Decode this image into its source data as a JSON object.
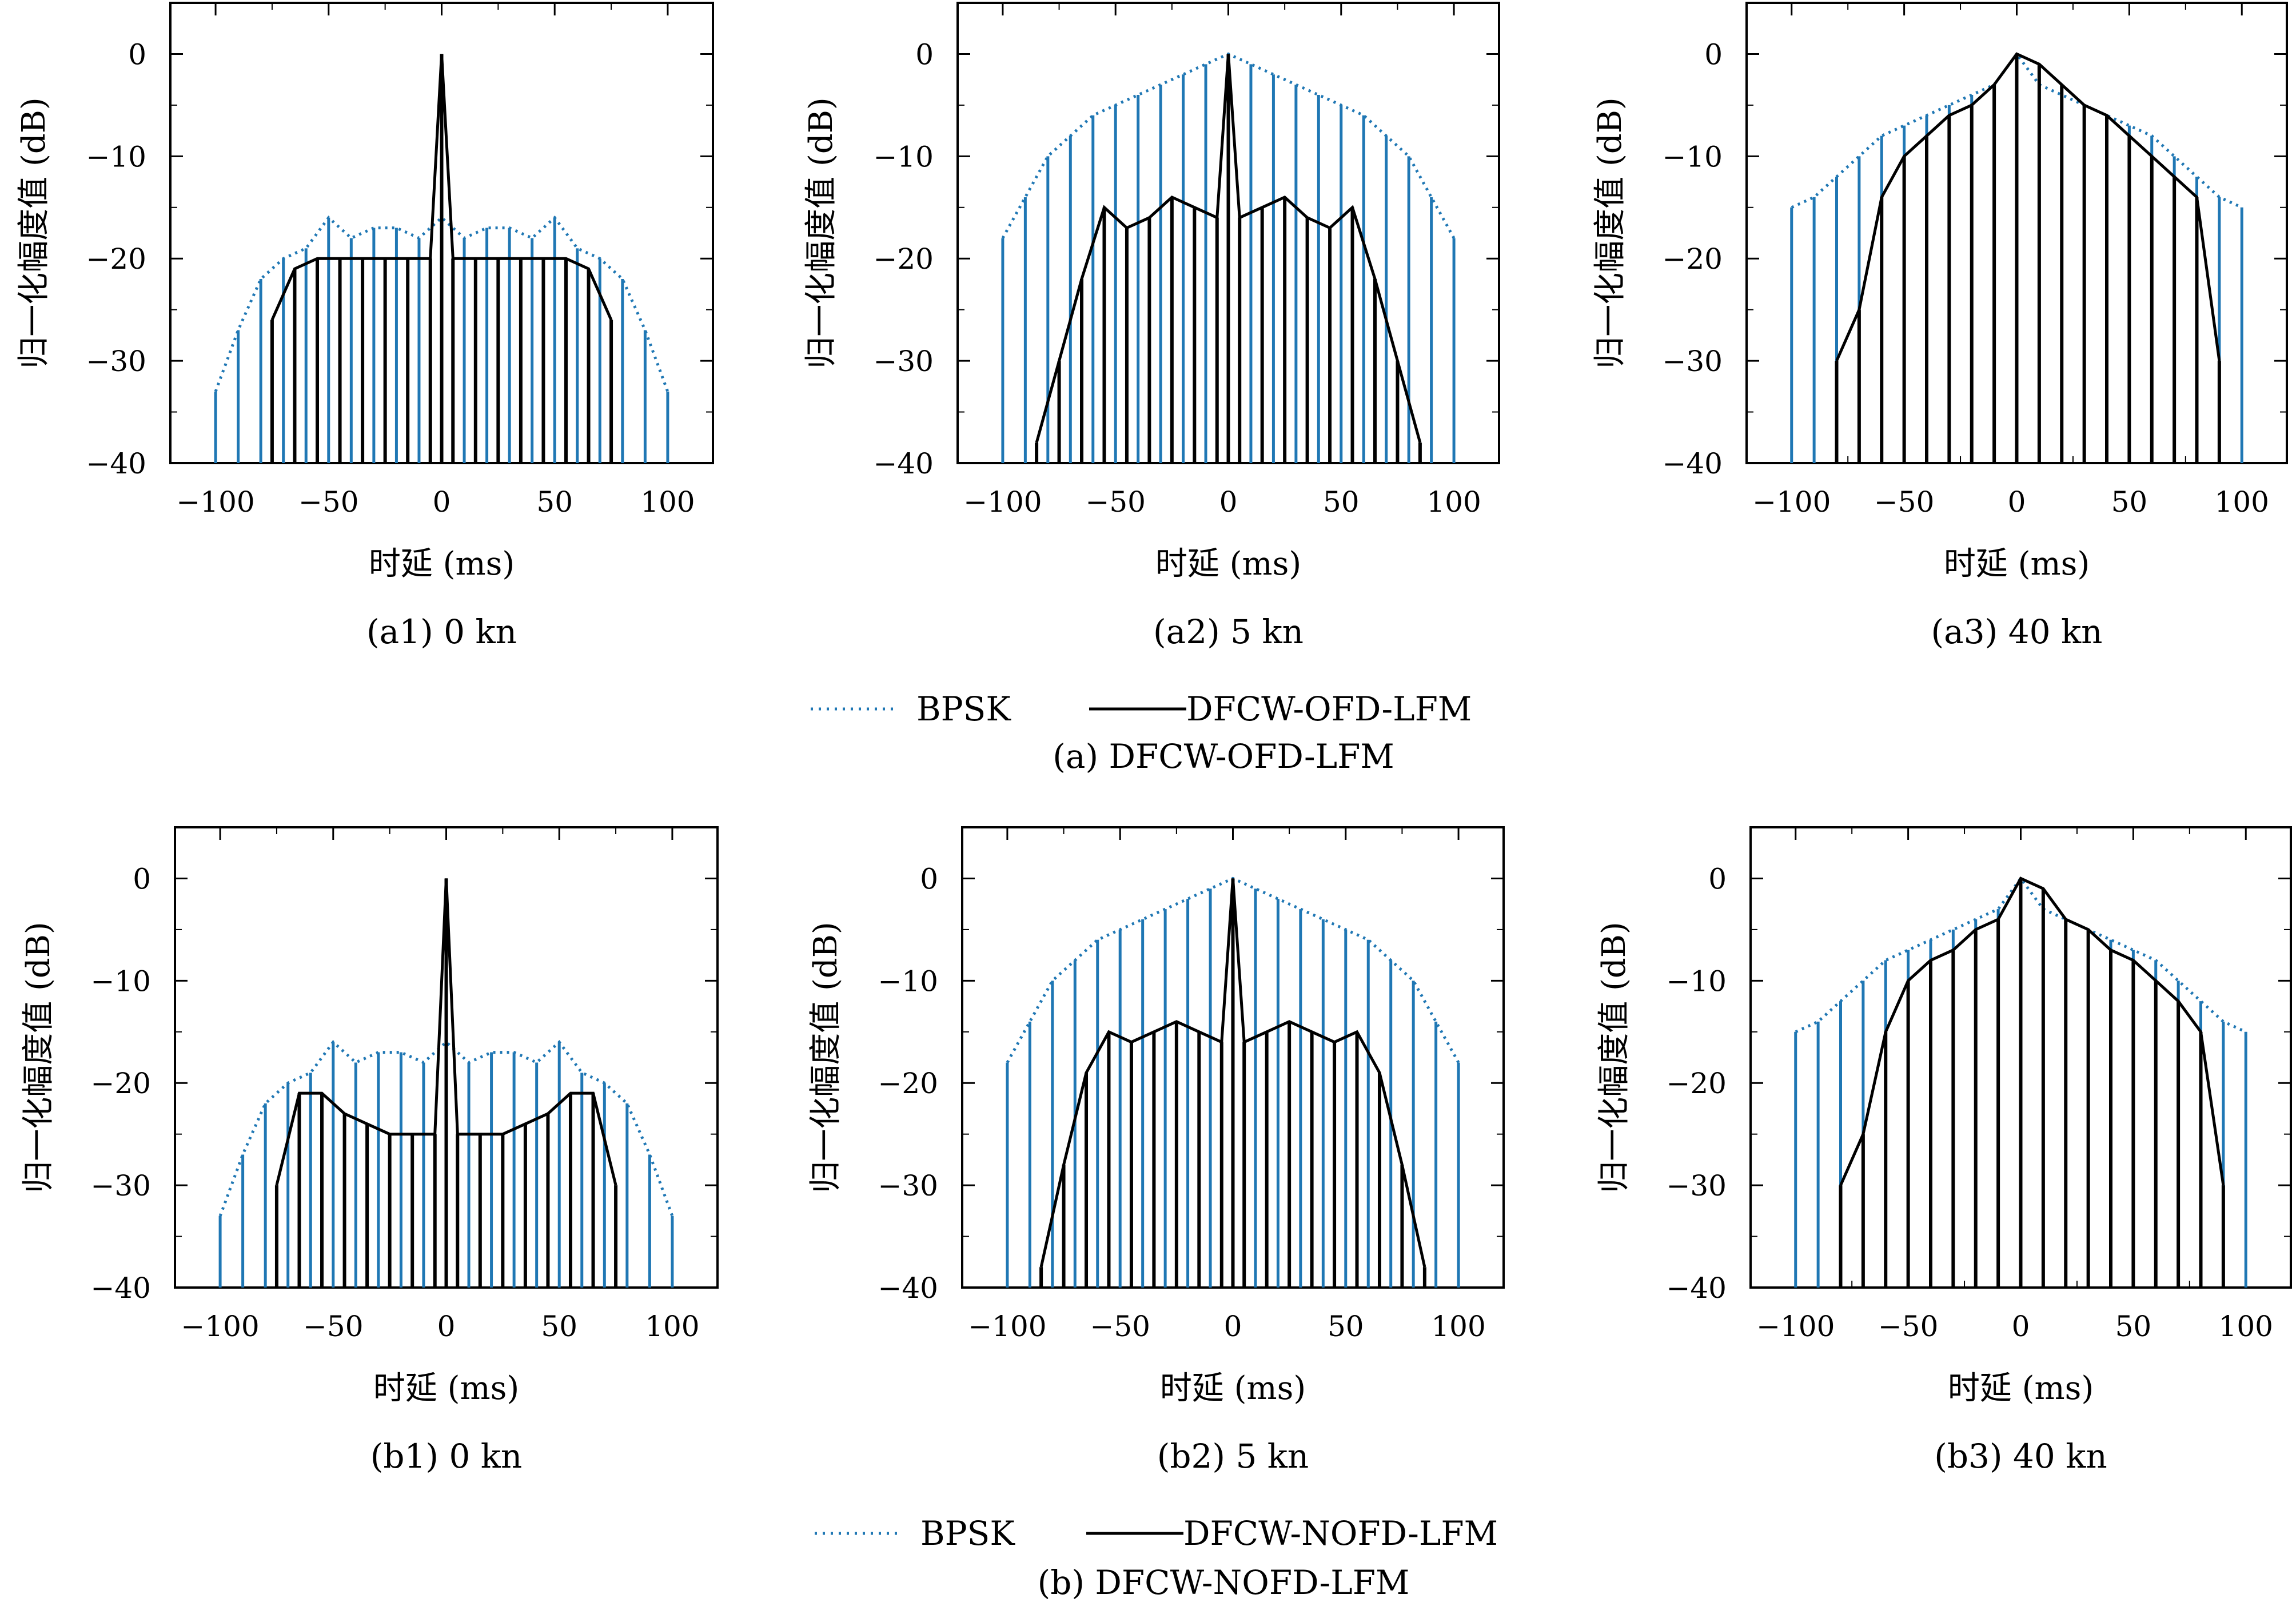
{
  "colors": {
    "bpsk": "#1f77b4",
    "dfcw": "#000000",
    "axes": "#000000"
  },
  "groups": [
    {
      "caption": "(a) DFCW-OFD-LFM",
      "legend": [
        {
          "label": "BPSK",
          "style": "dotted",
          "color": "#1f77b4"
        },
        {
          "label": "DFCW-OFD-LFM",
          "style": "solid",
          "color": "#000000"
        }
      ]
    },
    {
      "caption": "(b) DFCW-NOFD-LFM",
      "legend": [
        {
          "label": "BPSK",
          "style": "dotted",
          "color": "#1f77b4"
        },
        {
          "label": "DFCW-NOFD-LFM",
          "style": "solid",
          "color": "#000000"
        }
      ]
    }
  ],
  "chart_data": [
    {
      "type": "line",
      "caption": "(a1) 0 kn",
      "xlabel": "时延 (ms)",
      "ylabel": "归一化幅度值 (dB)",
      "xlim": [
        -120,
        120
      ],
      "ylim": [
        -40,
        5
      ],
      "xticks": [
        -100,
        -50,
        0,
        50,
        100
      ],
      "yticks": [
        0,
        -10,
        -20,
        -30,
        -40
      ],
      "series": [
        {
          "name": "BPSK",
          "x": [
            -100,
            -90,
            -80,
            -70,
            -60,
            -50,
            -40,
            -30,
            -20,
            -10,
            0,
            10,
            20,
            30,
            40,
            50,
            60,
            70,
            80,
            90,
            100
          ],
          "y": [
            -33,
            -27,
            -22,
            -20,
            -19,
            -16,
            -18,
            -17,
            -17,
            -18,
            -16,
            -18,
            -17,
            -17,
            -18,
            -16,
            -19,
            -20,
            -22,
            -27,
            -33
          ]
        },
        {
          "name": "DFCW-OFD-LFM",
          "x": [
            -75,
            -65,
            -55,
            -45,
            -35,
            -25,
            -15,
            -5,
            0,
            5,
            15,
            25,
            35,
            45,
            55,
            65,
            75
          ],
          "y": [
            -26,
            -21,
            -20,
            -20,
            -20,
            -20,
            -20,
            -20,
            0,
            -20,
            -20,
            -20,
            -20,
            -20,
            -20,
            -21,
            -26
          ]
        }
      ]
    },
    {
      "type": "line",
      "caption": "(a2) 5 kn",
      "xlabel": "时延 (ms)",
      "ylabel": "归一化幅度值 (dB)",
      "xlim": [
        -120,
        120
      ],
      "ylim": [
        -40,
        5
      ],
      "xticks": [
        -100,
        -50,
        0,
        50,
        100
      ],
      "yticks": [
        0,
        -10,
        -20,
        -30,
        -40
      ],
      "series": [
        {
          "name": "BPSK",
          "x": [
            -100,
            -90,
            -80,
            -70,
            -60,
            -50,
            -40,
            -30,
            -20,
            -10,
            0,
            10,
            20,
            30,
            40,
            50,
            60,
            70,
            80,
            90,
            100
          ],
          "y": [
            -18,
            -14,
            -10,
            -8,
            -6,
            -5,
            -4,
            -3,
            -2,
            -1,
            0,
            -1,
            -2,
            -3,
            -4,
            -5,
            -6,
            -8,
            -10,
            -14,
            -18
          ]
        },
        {
          "name": "DFCW-OFD-LFM",
          "x": [
            -85,
            -75,
            -65,
            -55,
            -45,
            -35,
            -25,
            -15,
            -5,
            0,
            5,
            15,
            25,
            35,
            45,
            55,
            65,
            75,
            85
          ],
          "y": [
            -38,
            -30,
            -22,
            -15,
            -17,
            -16,
            -14,
            -15,
            -16,
            0,
            -16,
            -15,
            -14,
            -16,
            -17,
            -15,
            -22,
            -30,
            -38
          ]
        }
      ]
    },
    {
      "type": "line",
      "caption": "(a3) 40 kn",
      "xlabel": "时延 (ms)",
      "ylabel": "归一化幅度值 (dB)",
      "xlim": [
        -120,
        120
      ],
      "ylim": [
        -40,
        5
      ],
      "xticks": [
        -100,
        -50,
        0,
        50,
        100
      ],
      "yticks": [
        0,
        -10,
        -20,
        -30,
        -40
      ],
      "series": [
        {
          "name": "BPSK",
          "x": [
            -100,
            -90,
            -80,
            -70,
            -60,
            -50,
            -40,
            -30,
            -20,
            -10,
            0,
            10,
            20,
            30,
            40,
            50,
            60,
            70,
            80,
            90,
            100
          ],
          "y": [
            -15,
            -14,
            -12,
            -10,
            -8,
            -7,
            -6,
            -5,
            -4,
            -3,
            0,
            -3,
            -4,
            -5,
            -6,
            -7,
            -8,
            -10,
            -12,
            -14,
            -15
          ]
        },
        {
          "name": "DFCW-OFD-LFM",
          "x": [
            -80,
            -70,
            -60,
            -50,
            -40,
            -30,
            -20,
            -10,
            0,
            10,
            20,
            30,
            40,
            50,
            60,
            70,
            80,
            90
          ],
          "y": [
            -30,
            -25,
            -14,
            -10,
            -8,
            -6,
            -5,
            -3,
            0,
            -1,
            -3,
            -5,
            -6,
            -8,
            -10,
            -12,
            -14,
            -30
          ]
        }
      ]
    },
    {
      "type": "line",
      "caption": "(b1) 0 kn",
      "xlabel": "时延 (ms)",
      "ylabel": "归一化幅度值 (dB)",
      "xlim": [
        -120,
        120
      ],
      "ylim": [
        -40,
        5
      ],
      "xticks": [
        -100,
        -50,
        0,
        50,
        100
      ],
      "yticks": [
        0,
        -10,
        -20,
        -30,
        -40
      ],
      "series": [
        {
          "name": "BPSK",
          "x": [
            -100,
            -90,
            -80,
            -70,
            -60,
            -50,
            -40,
            -30,
            -20,
            -10,
            0,
            10,
            20,
            30,
            40,
            50,
            60,
            70,
            80,
            90,
            100
          ],
          "y": [
            -33,
            -27,
            -22,
            -20,
            -19,
            -16,
            -18,
            -17,
            -17,
            -18,
            -16,
            -18,
            -17,
            -17,
            -18,
            -16,
            -19,
            -20,
            -22,
            -27,
            -33
          ]
        },
        {
          "name": "DFCW-NOFD-LFM",
          "x": [
            -75,
            -65,
            -55,
            -45,
            -35,
            -25,
            -15,
            -5,
            0,
            5,
            15,
            25,
            35,
            45,
            55,
            65,
            75
          ],
          "y": [
            -30,
            -21,
            -21,
            -23,
            -24,
            -25,
            -25,
            -25,
            0,
            -25,
            -25,
            -25,
            -24,
            -23,
            -21,
            -21,
            -30
          ]
        }
      ]
    },
    {
      "type": "line",
      "caption": "(b2) 5 kn",
      "xlabel": "时延 (ms)",
      "ylabel": "归一化幅度值 (dB)",
      "xlim": [
        -120,
        120
      ],
      "ylim": [
        -40,
        5
      ],
      "xticks": [
        -100,
        -50,
        0,
        50,
        100
      ],
      "yticks": [
        0,
        -10,
        -20,
        -30,
        -40
      ],
      "series": [
        {
          "name": "BPSK",
          "x": [
            -100,
            -90,
            -80,
            -70,
            -60,
            -50,
            -40,
            -30,
            -20,
            -10,
            0,
            10,
            20,
            30,
            40,
            50,
            60,
            70,
            80,
            90,
            100
          ],
          "y": [
            -18,
            -14,
            -10,
            -8,
            -6,
            -5,
            -4,
            -3,
            -2,
            -1,
            0,
            -1,
            -2,
            -3,
            -4,
            -5,
            -6,
            -8,
            -10,
            -14,
            -18
          ]
        },
        {
          "name": "DFCW-NOFD-LFM",
          "x": [
            -85,
            -75,
            -65,
            -55,
            -45,
            -35,
            -25,
            -15,
            -5,
            0,
            5,
            15,
            25,
            35,
            45,
            55,
            65,
            75,
            85
          ],
          "y": [
            -38,
            -28,
            -19,
            -15,
            -16,
            -15,
            -14,
            -15,
            -16,
            0,
            -16,
            -15,
            -14,
            -15,
            -16,
            -15,
            -19,
            -28,
            -38
          ]
        }
      ]
    },
    {
      "type": "line",
      "caption": "(b3) 40 kn",
      "xlabel": "时延 (ms)",
      "ylabel": "归一化幅度值 (dB)",
      "xlim": [
        -120,
        120
      ],
      "ylim": [
        -40,
        5
      ],
      "xticks": [
        -100,
        -50,
        0,
        50,
        100
      ],
      "yticks": [
        0,
        -10,
        -20,
        -30,
        -40
      ],
      "series": [
        {
          "name": "BPSK",
          "x": [
            -100,
            -90,
            -80,
            -70,
            -60,
            -50,
            -40,
            -30,
            -20,
            -10,
            0,
            10,
            20,
            30,
            40,
            50,
            60,
            70,
            80,
            90,
            100
          ],
          "y": [
            -15,
            -14,
            -12,
            -10,
            -8,
            -7,
            -6,
            -5,
            -4,
            -3,
            0,
            -3,
            -4,
            -5,
            -6,
            -7,
            -8,
            -10,
            -12,
            -14,
            -15
          ]
        },
        {
          "name": "DFCW-NOFD-LFM",
          "x": [
            -80,
            -70,
            -60,
            -50,
            -40,
            -30,
            -20,
            -10,
            0,
            10,
            20,
            30,
            40,
            50,
            60,
            70,
            80,
            90
          ],
          "y": [
            -30,
            -25,
            -15,
            -10,
            -8,
            -7,
            -5,
            -4,
            0,
            -1,
            -4,
            -5,
            -7,
            -8,
            -10,
            -12,
            -15,
            -30
          ]
        }
      ]
    }
  ]
}
